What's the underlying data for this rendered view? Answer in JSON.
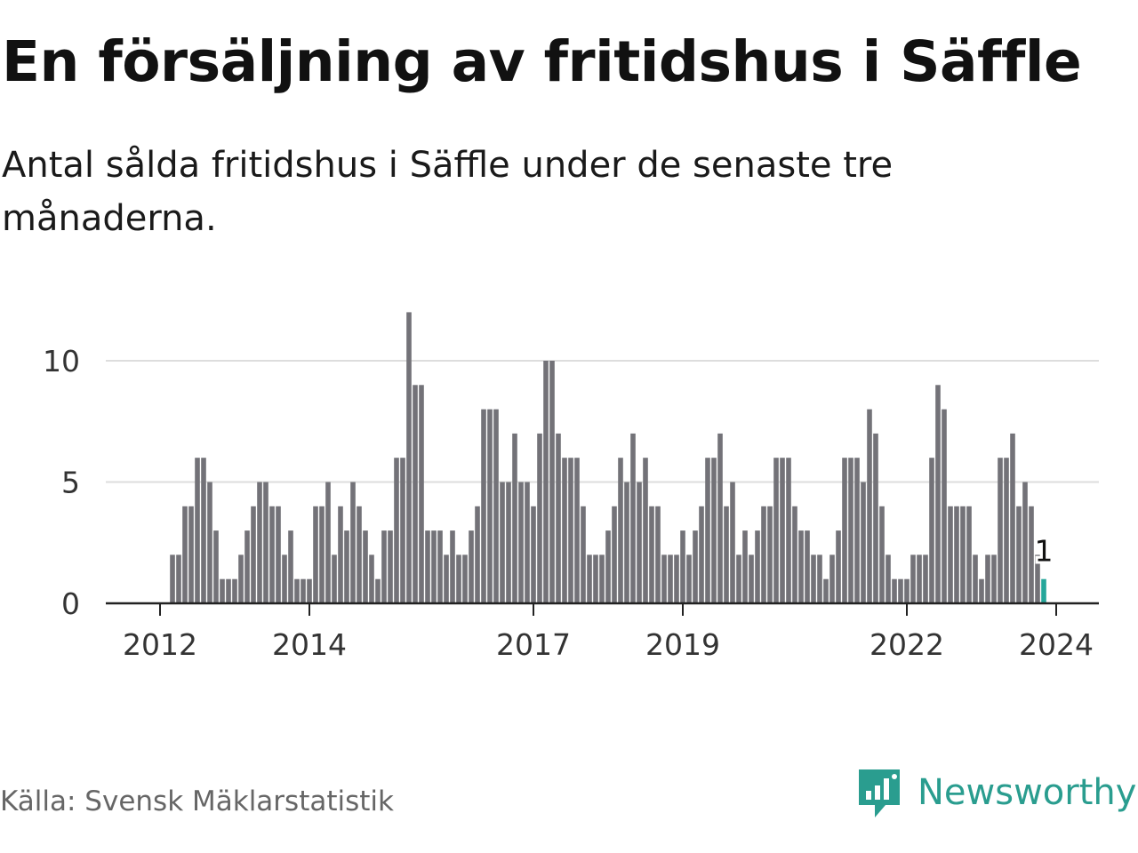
{
  "header": {
    "title": "En försäljning av fritidshus i Säffle",
    "subtitle": "Antal sålda fritidshus i Säffle under de senaste tre månaderna."
  },
  "footer": {
    "source": "Källa: Svensk Mäklarstatistik",
    "brand": "Newsworthy",
    "brand_icon": "bar-chart-speech-bubble-icon"
  },
  "colors": {
    "bar": "#737278",
    "highlight": "#25a69a",
    "grid": "#dddddd",
    "axis": "#222222",
    "brand": "#2a9d8f"
  },
  "chart_data": {
    "type": "bar",
    "title": "En försäljning av fritidshus i Säffle",
    "subtitle": "Antal sålda fritidshus i Säffle under de senaste tre månaderna.",
    "xlabel": "",
    "ylabel": "",
    "ylim": [
      0,
      12
    ],
    "yticks": [
      0,
      5,
      10
    ],
    "xticks": [
      {
        "label": "2012",
        "year": 2012
      },
      {
        "label": "2014",
        "year": 2014
      },
      {
        "label": "2017",
        "year": 2017
      },
      {
        "label": "2019",
        "year": 2019
      },
      {
        "label": "2022",
        "year": 2022
      },
      {
        "label": "2024",
        "year": 2024
      }
    ],
    "start": "2012-03",
    "end": "2024-01",
    "values": [
      2,
      2,
      4,
      4,
      6,
      6,
      5,
      3,
      1,
      1,
      1,
      2,
      3,
      4,
      5,
      5,
      4,
      4,
      2,
      3,
      1,
      1,
      1,
      4,
      4,
      5,
      2,
      4,
      3,
      5,
      4,
      3,
      2,
      1,
      3,
      3,
      6,
      6,
      12,
      9,
      9,
      3,
      3,
      3,
      2,
      3,
      2,
      2,
      3,
      4,
      8,
      8,
      8,
      5,
      5,
      7,
      5,
      5,
      4,
      7,
      10,
      10,
      7,
      6,
      6,
      6,
      4,
      2,
      2,
      2,
      3,
      4,
      6,
      5,
      7,
      5,
      6,
      4,
      4,
      2,
      2,
      2,
      3,
      2,
      3,
      4,
      6,
      6,
      7,
      4,
      5,
      2,
      3,
      2,
      3,
      4,
      4,
      6,
      6,
      6,
      4,
      3,
      3,
      2,
      2,
      1,
      2,
      3,
      6,
      6,
      6,
      5,
      8,
      7,
      4,
      2,
      1,
      1,
      1,
      2,
      2,
      2,
      6,
      9,
      8,
      4,
      4,
      4,
      4,
      2,
      1,
      2,
      2,
      6,
      6,
      7,
      4,
      5,
      4,
      2,
      1
    ],
    "highlight": {
      "label": "1",
      "value": 1
    }
  }
}
